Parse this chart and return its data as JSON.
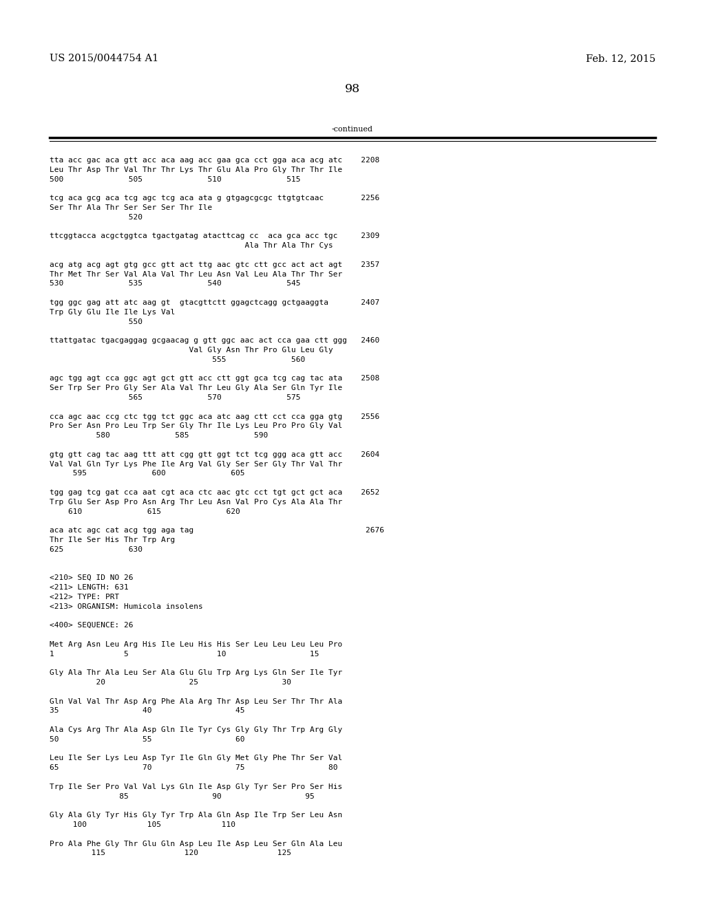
{
  "background_color": "#ffffff",
  "header_left": "US 2015/0044754 A1",
  "header_right": "Feb. 12, 2015",
  "page_number": "98",
  "continued_label": "-continued",
  "font_size_mono": 8.0,
  "font_size_header": 10.5,
  "font_size_page": 12.5,
  "monospace_font": "DejaVu Sans Mono",
  "serif_font": "serif",
  "content_lines": [
    "tta acc gac aca gtt acc aca aag acc gaa gca cct gga aca acg atc    2208",
    "Leu Thr Asp Thr Val Thr Thr Lys Thr Glu Ala Pro Gly Thr Thr Ile",
    "500              505              510              515",
    "",
    "tcg aca gcg aca tcg agc tcg aca ata g gtgagcgcgc ttgtgtcaac        2256",
    "Ser Thr Ala Thr Ser Ser Ser Thr Ile",
    "                 520",
    "",
    "ttcggtacca acgctggtca tgactgatag atacttcag cc  aca gca acc tgc     2309",
    "                                          Ala Thr Ala Thr Cys",
    "",
    "acg atg acg agt gtg gcc gtt act ttg aac gtc ctt gcc act act agt    2357",
    "Thr Met Thr Ser Val Ala Val Thr Leu Asn Val Leu Ala Thr Thr Ser",
    "530              535              540              545",
    "",
    "tgg ggc gag att atc aag gt  gtacgttctt ggagctcagg gctgaaggta       2407",
    "Trp Gly Glu Ile Ile Lys Val",
    "                 550",
    "",
    "ttattgatac tgacgaggag gcgaacag g gtt ggc aac act cca gaa ctt ggg   2460",
    "                              Val Gly Asn Thr Pro Glu Leu Gly",
    "                                   555              560",
    "",
    "agc tgg agt cca ggc agt gct gtt acc ctt ggt gca tcg cag tac ata    2508",
    "Ser Trp Ser Pro Gly Ser Ala Val Thr Leu Gly Ala Ser Gln Tyr Ile",
    "                 565              570              575",
    "",
    "cca agc aac ccg ctc tgg tct ggc aca atc aag ctt cct cca gga gtg    2556",
    "Pro Ser Asn Pro Leu Trp Ser Gly Thr Ile Lys Leu Pro Pro Gly Val",
    "          580              585              590",
    "",
    "gtg gtt cag tac aag ttt att cgg gtt ggt tct tcg ggg aca gtt acc    2604",
    "Val Val Gln Tyr Lys Phe Ile Arg Val Gly Ser Ser Gly Thr Val Thr",
    "     595              600              605",
    "",
    "tgg gag tcg gat cca aat cgt aca ctc aac gtc cct tgt gct gct aca    2652",
    "Trp Glu Ser Asp Pro Asn Arg Thr Leu Asn Val Pro Cys Ala Ala Thr",
    "    610              615              620",
    "",
    "aca atc agc cat acg tgg aga tag                                     2676",
    "Thr Ile Ser His Thr Trp Arg",
    "625              630",
    "",
    "",
    "<210> SEQ ID NO 26",
    "<211> LENGTH: 631",
    "<212> TYPE: PRT",
    "<213> ORGANISM: Humicola insolens",
    "",
    "<400> SEQUENCE: 26",
    "",
    "Met Arg Asn Leu Arg His Ile Leu His His Ser Leu Leu Leu Leu Pro",
    "1               5                   10                  15",
    "",
    "Gly Ala Thr Ala Leu Ser Ala Glu Glu Trp Arg Lys Gln Ser Ile Tyr",
    "          20                  25                  30",
    "",
    "Gln Val Val Thr Asp Arg Phe Ala Arg Thr Asp Leu Ser Thr Thr Ala",
    "35                  40                  45",
    "",
    "Ala Cys Arg Thr Ala Asp Gln Ile Tyr Cys Gly Gly Thr Trp Arg Gly",
    "50                  55                  60",
    "",
    "Leu Ile Ser Lys Leu Asp Tyr Ile Gln Gly Met Gly Phe Thr Ser Val",
    "65                  70                  75                  80",
    "",
    "Trp Ile Ser Pro Val Val Lys Gln Ile Asp Gly Tyr Ser Pro Ser His",
    "               85                  90                  95",
    "",
    "Gly Ala Gly Tyr His Gly Tyr Trp Ala Gln Asp Ile Trp Ser Leu Asn",
    "     100             105             110",
    "",
    "Pro Ala Phe Gly Thr Glu Gln Asp Leu Ile Asp Leu Ser Gln Ala Leu",
    "         115                 120                 125"
  ]
}
